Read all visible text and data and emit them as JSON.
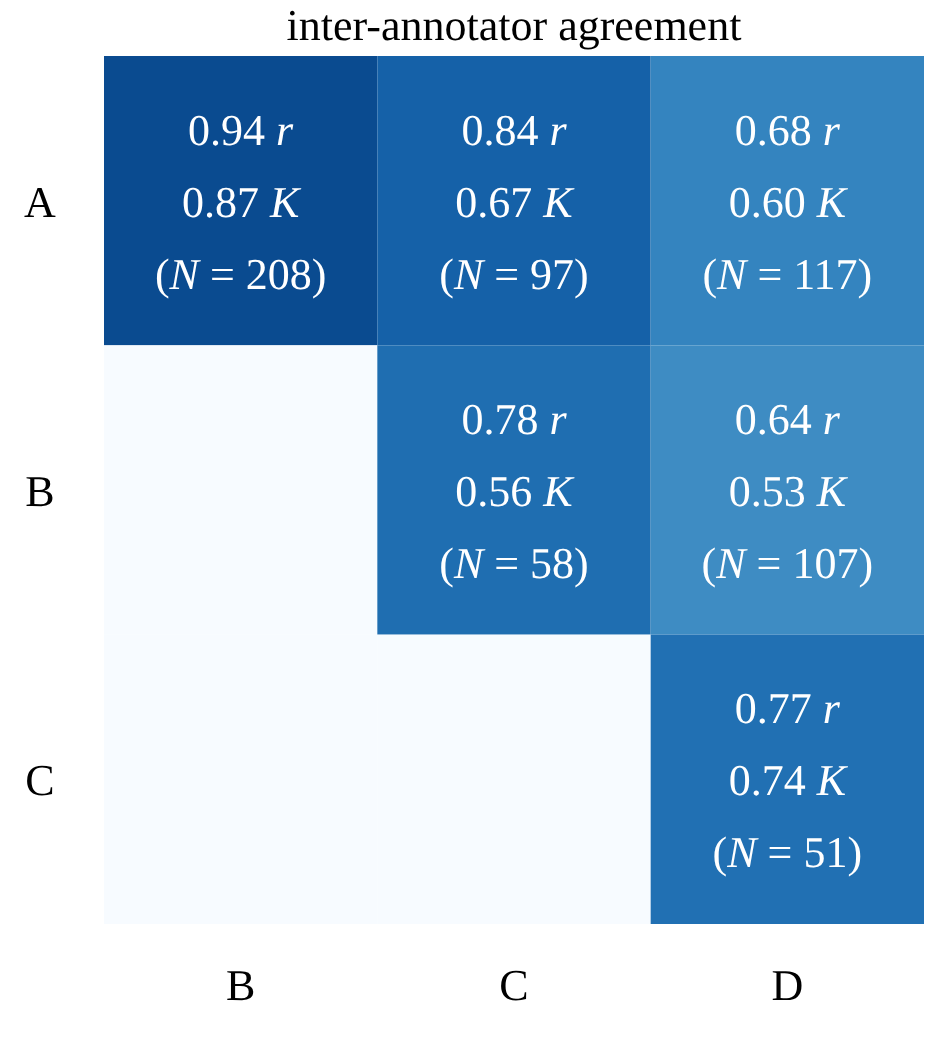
{
  "chart_data": {
    "type": "heatmap",
    "title": "inter-annotator agreement",
    "categories": [
      "B",
      "C",
      "D"
    ],
    "y_categories": [
      "A",
      "B",
      "C"
    ],
    "cells": [
      [
        0.94,
        0.84,
        0.68
      ],
      [
        null,
        0.78,
        0.64
      ],
      [
        null,
        null,
        0.77
      ]
    ],
    "cell_labels": [
      [
        "0.94 r",
        "0.84 r",
        "0.68 r"
      ],
      [
        null,
        "0.78 r",
        "0.64 r"
      ],
      [
        null,
        null,
        "0.77 r"
      ]
    ],
    "annotations": [
      "0.87 K",
      "(N = 208)",
      "0.67 K",
      "(N = 97)",
      "0.60 K",
      "(N = 117)",
      "0.56 K",
      "(N = 58)",
      "0.53 K",
      "(N = 107)",
      "0.74 K",
      "(N = 51)"
    ]
  }
}
